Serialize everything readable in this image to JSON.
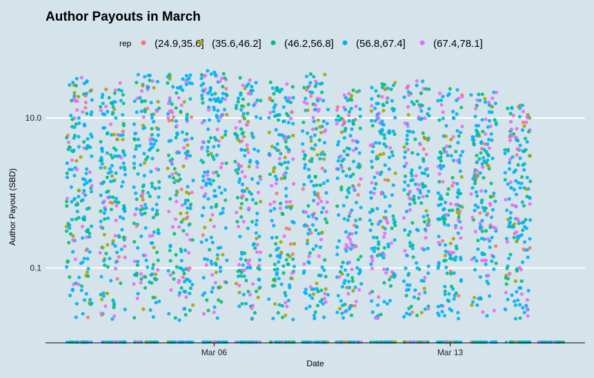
{
  "chart_data": {
    "type": "scatter",
    "title": "Author Payouts in March",
    "xlabel": "Date",
    "ylabel": "Author Payout (SBD)",
    "y_scale": "log10",
    "ylim": [
      0.01,
      50
    ],
    "y_ticks": [
      {
        "value": 10,
        "label": "10.0"
      },
      {
        "value": 0.1,
        "label": "0.1"
      }
    ],
    "x_range": [
      "2018-03-01",
      "2018-03-17"
    ],
    "x_ticks": [
      {
        "date": "2018-03-06",
        "label": "Mar 06"
      },
      {
        "date": "2018-03-13",
        "label": "Mar 13"
      }
    ],
    "dates": [
      "2018-03-02",
      "2018-03-03",
      "2018-03-04",
      "2018-03-05",
      "2018-03-06",
      "2018-03-07",
      "2018-03-08",
      "2018-03-09",
      "2018-03-10",
      "2018-03-11",
      "2018-03-12",
      "2018-03-13",
      "2018-03-14",
      "2018-03-15",
      "2018-03-16"
    ],
    "grid": true,
    "legend_position": "top",
    "legend": {
      "title": "rep",
      "items": [
        {
          "label": "(24.9,35.6]",
          "color": "#f8766d"
        },
        {
          "label": "(35.6,46.2]",
          "color": "#a3a500"
        },
        {
          "label": "(46.2,56.8]",
          "color": "#00bf7d"
        },
        {
          "label": "(56.8,67.4]",
          "color": "#00b0f6"
        },
        {
          "label": "(67.4,78.1]",
          "color": "#e76bf3"
        }
      ]
    },
    "approx_max_payout_by_date": [
      35,
      30,
      38,
      38,
      45,
      35,
      30,
      42,
      25,
      30,
      33,
      25,
      22,
      15,
      0.02
    ]
  }
}
